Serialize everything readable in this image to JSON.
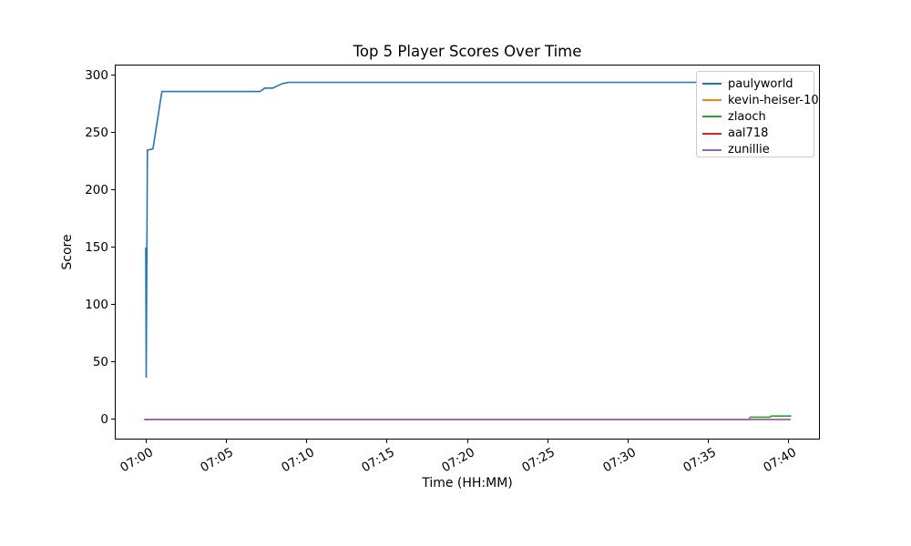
{
  "chart_data": {
    "type": "line",
    "title": "Top 5 Player Scores Over Time",
    "xlabel": "Time (HH:MM)",
    "ylabel": "Score",
    "x_unit": "minutes after 07:00",
    "xlim": [
      -1.87,
      41.87
    ],
    "ylim": [
      -16.7,
      308.7
    ],
    "grid": false,
    "legend_position": "upper right",
    "x_ticks": {
      "minutes": [
        0,
        5,
        10,
        15,
        20,
        25,
        30,
        35,
        40
      ],
      "labels": [
        "07:00",
        "07:05",
        "07:10",
        "07:15",
        "07:20",
        "07:25",
        "07:30",
        "07:35",
        "07:40"
      ]
    },
    "y_ticks": [
      0,
      50,
      100,
      150,
      200,
      250,
      300
    ],
    "series": [
      {
        "name": "paulyworld",
        "color": "#1f77b4",
        "points": [
          [
            0,
            150
          ],
          [
            0.03,
            37
          ],
          [
            0.1,
            235
          ],
          [
            0.45,
            236
          ],
          [
            1.0,
            286
          ],
          [
            7.1,
            286
          ],
          [
            7.4,
            289
          ],
          [
            7.9,
            289
          ],
          [
            8.5,
            293
          ],
          [
            8.9,
            294
          ],
          [
            40.1,
            294
          ]
        ]
      },
      {
        "name": "kevin-heiser-10",
        "color": "#ff7f0e",
        "points": [
          [
            0,
            171
          ],
          [
            0.12,
            171
          ]
        ]
      },
      {
        "name": "zlaoch",
        "color": "#2ca02c",
        "points": [
          [
            0,
            0
          ],
          [
            37.5,
            0
          ],
          [
            37.6,
            2
          ],
          [
            38.8,
            2
          ],
          [
            38.9,
            3
          ],
          [
            40.15,
            3
          ]
        ]
      },
      {
        "name": "aal718",
        "color": "#d62728",
        "points": [
          [
            -0.1,
            0
          ],
          [
            40.1,
            0
          ]
        ]
      },
      {
        "name": "zunillie",
        "color": "#9467bd",
        "points": [
          [
            0.05,
            0
          ],
          [
            40.0,
            0
          ]
        ]
      }
    ]
  }
}
